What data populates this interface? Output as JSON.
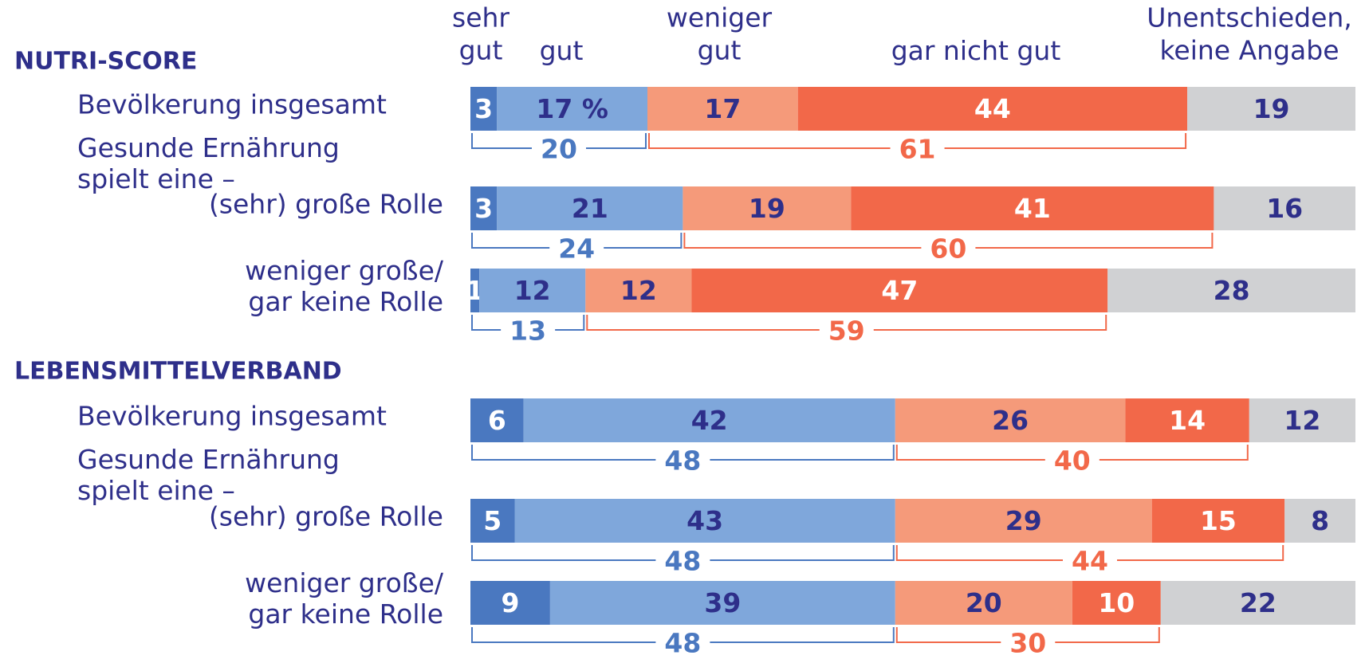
{
  "chart_data": {
    "type": "bar",
    "orientation": "horizontal",
    "stacked": true,
    "xlim": [
      0,
      100
    ],
    "series": [
      {
        "name": "sehr\ngut",
        "color": "#4a78c0",
        "label_color": "#ffffff",
        "values": [
          3,
          3,
          1,
          6,
          5,
          9
        ]
      },
      {
        "name": "gut",
        "color": "#7fa7db",
        "label_color": "#2e2f8a",
        "values": [
          17,
          21,
          12,
          42,
          43,
          39
        ],
        "value_labels": [
          "17 %",
          "21",
          "12",
          "42",
          "43",
          "39"
        ]
      },
      {
        "name": "weniger\ngut",
        "color": "#f59a7a",
        "label_color": "#2e2f8a",
        "values": [
          17,
          19,
          12,
          26,
          29,
          20
        ]
      },
      {
        "name": "gar nicht gut",
        "color": "#f26849",
        "label_color": "#ffffff",
        "values": [
          44,
          41,
          47,
          14,
          15,
          10
        ]
      },
      {
        "name": "Unentschieden,\nkeine Angabe",
        "color": "#d0d1d3",
        "label_color": "#2e2f8a",
        "values": [
          19,
          16,
          28,
          12,
          8,
          22
        ]
      }
    ],
    "groups": [
      {
        "title": "NUTRI-SCORE",
        "subheading": "Gesunde Ernährung\nspielt eine –",
        "categories": [
          "Bevölkerung insgesamt",
          "(sehr) große Rolle",
          "weniger große/\ngar keine Rolle"
        ]
      },
      {
        "title": "LEBENSMITTELVERBAND",
        "subheading": "Gesunde Ernährung\nspielt eine –",
        "categories": [
          "Bevölkerung insgesamt",
          "(sehr) große Rolle",
          "weniger große/\ngar keine Rolle"
        ]
      }
    ],
    "positive_totals": {
      "color": "#4a78c0",
      "values": [
        20,
        24,
        13,
        48,
        48,
        48
      ]
    },
    "negative_totals": {
      "color": "#f26849",
      "values": [
        61,
        60,
        59,
        40,
        44,
        30
      ]
    }
  }
}
